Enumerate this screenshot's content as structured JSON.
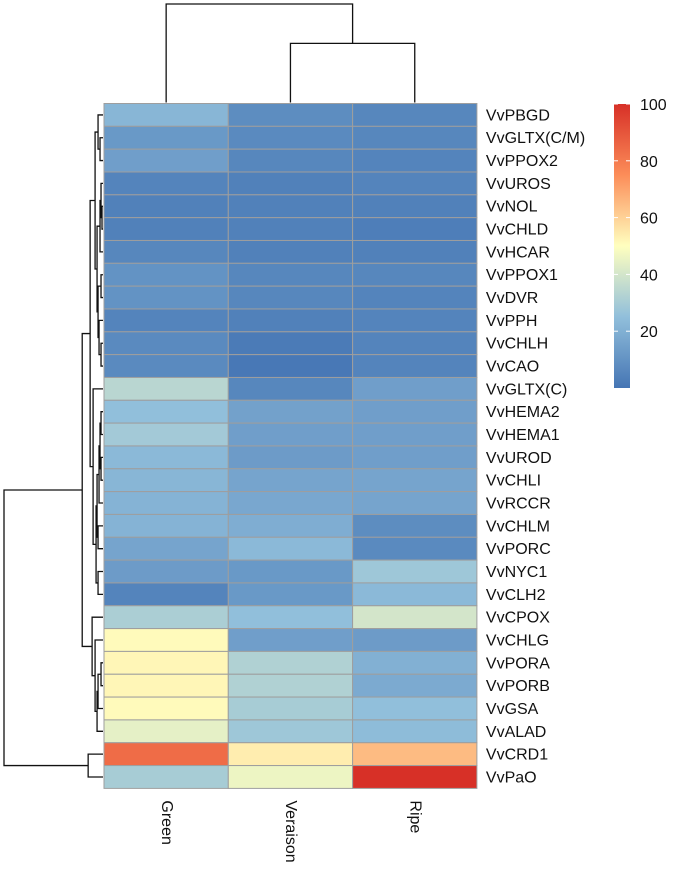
{
  "chart_data": {
    "type": "heatmap",
    "title": "",
    "columns": [
      "Green",
      "Veraison",
      "Ripe"
    ],
    "rows": [
      "VvPBGD",
      "VvGLTX(C/M)",
      "VvPPOX2",
      "VvUROS",
      "VvNOL",
      "VvCHLD",
      "VvHCAR",
      "VvPPOX1",
      "VvDVR",
      "VvPPH",
      "VvCHLH",
      "VvCAO",
      "VvGLTX(C)",
      "VvHEMA2",
      "VvHEMA1",
      "VvUROD",
      "VvCHLI",
      "VvRCCR",
      "VvCHLM",
      "VvPORC",
      "VvNYC1",
      "VvCLH2",
      "VvCPOX",
      "VvCHLG",
      "VvPORA",
      "VvPORB",
      "VvGSA",
      "VvALAD",
      "VvCRD1",
      "VvPaO"
    ],
    "values": [
      [
        22,
        8,
        6
      ],
      [
        12,
        7,
        6
      ],
      [
        14,
        6,
        5
      ],
      [
        5,
        4,
        5
      ],
      [
        4,
        4,
        4
      ],
      [
        4,
        4,
        3
      ],
      [
        6,
        4,
        4
      ],
      [
        10,
        6,
        6
      ],
      [
        10,
        6,
        5
      ],
      [
        5,
        4,
        5
      ],
      [
        7,
        2,
        5
      ],
      [
        7,
        1,
        5
      ],
      [
        34,
        6,
        14
      ],
      [
        25,
        15,
        14
      ],
      [
        29,
        14,
        14
      ],
      [
        23,
        13,
        14
      ],
      [
        22,
        16,
        16
      ],
      [
        21,
        17,
        16
      ],
      [
        21,
        19,
        8
      ],
      [
        16,
        23,
        7
      ],
      [
        13,
        12,
        28
      ],
      [
        5,
        12,
        23
      ],
      [
        31,
        25,
        40
      ],
      [
        51,
        14,
        13
      ],
      [
        52,
        32,
        20
      ],
      [
        52,
        32,
        18
      ],
      [
        51,
        30,
        25
      ],
      [
        44,
        28,
        24
      ],
      [
        84,
        54,
        65
      ],
      [
        30,
        46,
        100
      ]
    ],
    "scale": {
      "min": 0,
      "max": 100,
      "ticks": [
        20,
        40,
        60,
        80,
        100
      ],
      "colors": [
        "#4575b4",
        "#91bfdb",
        "#ffffbf",
        "#fc8d59",
        "#d73027"
      ]
    },
    "row_dendrogram": {
      "leaf_order": [
        0,
        1,
        2,
        3,
        4,
        5,
        6,
        7,
        8,
        9,
        10,
        11,
        12,
        13,
        14,
        15,
        16,
        17,
        18,
        19,
        20,
        21,
        22,
        23,
        24,
        25,
        26,
        27,
        28,
        29
      ],
      "merges": [
        [
          -5,
          -6,
          1
        ],
        [
          1,
          -4,
          2
        ],
        [
          -7,
          2,
          3
        ],
        [
          -11,
          -12,
          2
        ],
        [
          -10,
          4,
          4
        ],
        [
          -8,
          -9,
          2
        ],
        [
          6,
          5,
          5
        ],
        [
          3,
          7,
          6
        ],
        [
          -2,
          -3,
          3
        ],
        [
          -1,
          9,
          5
        ],
        [
          8,
          10,
          8
        ],
        [
          -14,
          -15,
          2
        ],
        [
          -16,
          -17,
          2
        ],
        [
          12,
          13,
          3
        ],
        [
          14,
          -18,
          4
        ],
        [
          -19,
          -20,
          5
        ],
        [
          15,
          16,
          6
        ],
        [
          -21,
          -22,
          5
        ],
        [
          17,
          18,
          7
        ],
        [
          -13,
          19,
          10
        ],
        [
          11,
          20,
          13
        ],
        [
          -25,
          -26,
          2
        ],
        [
          22,
          -27,
          5
        ],
        [
          23,
          -28,
          6
        ],
        [
          -24,
          24,
          8
        ],
        [
          -23,
          25,
          11
        ],
        [
          21,
          26,
          21
        ],
        [
          -29,
          -30,
          15
        ],
        [
          27,
          28,
          100
        ]
      ]
    },
    "column_dendrogram": {
      "merges": [
        [
          -2,
          -3,
          60
        ],
        [
          -1,
          1,
          100
        ]
      ]
    }
  }
}
